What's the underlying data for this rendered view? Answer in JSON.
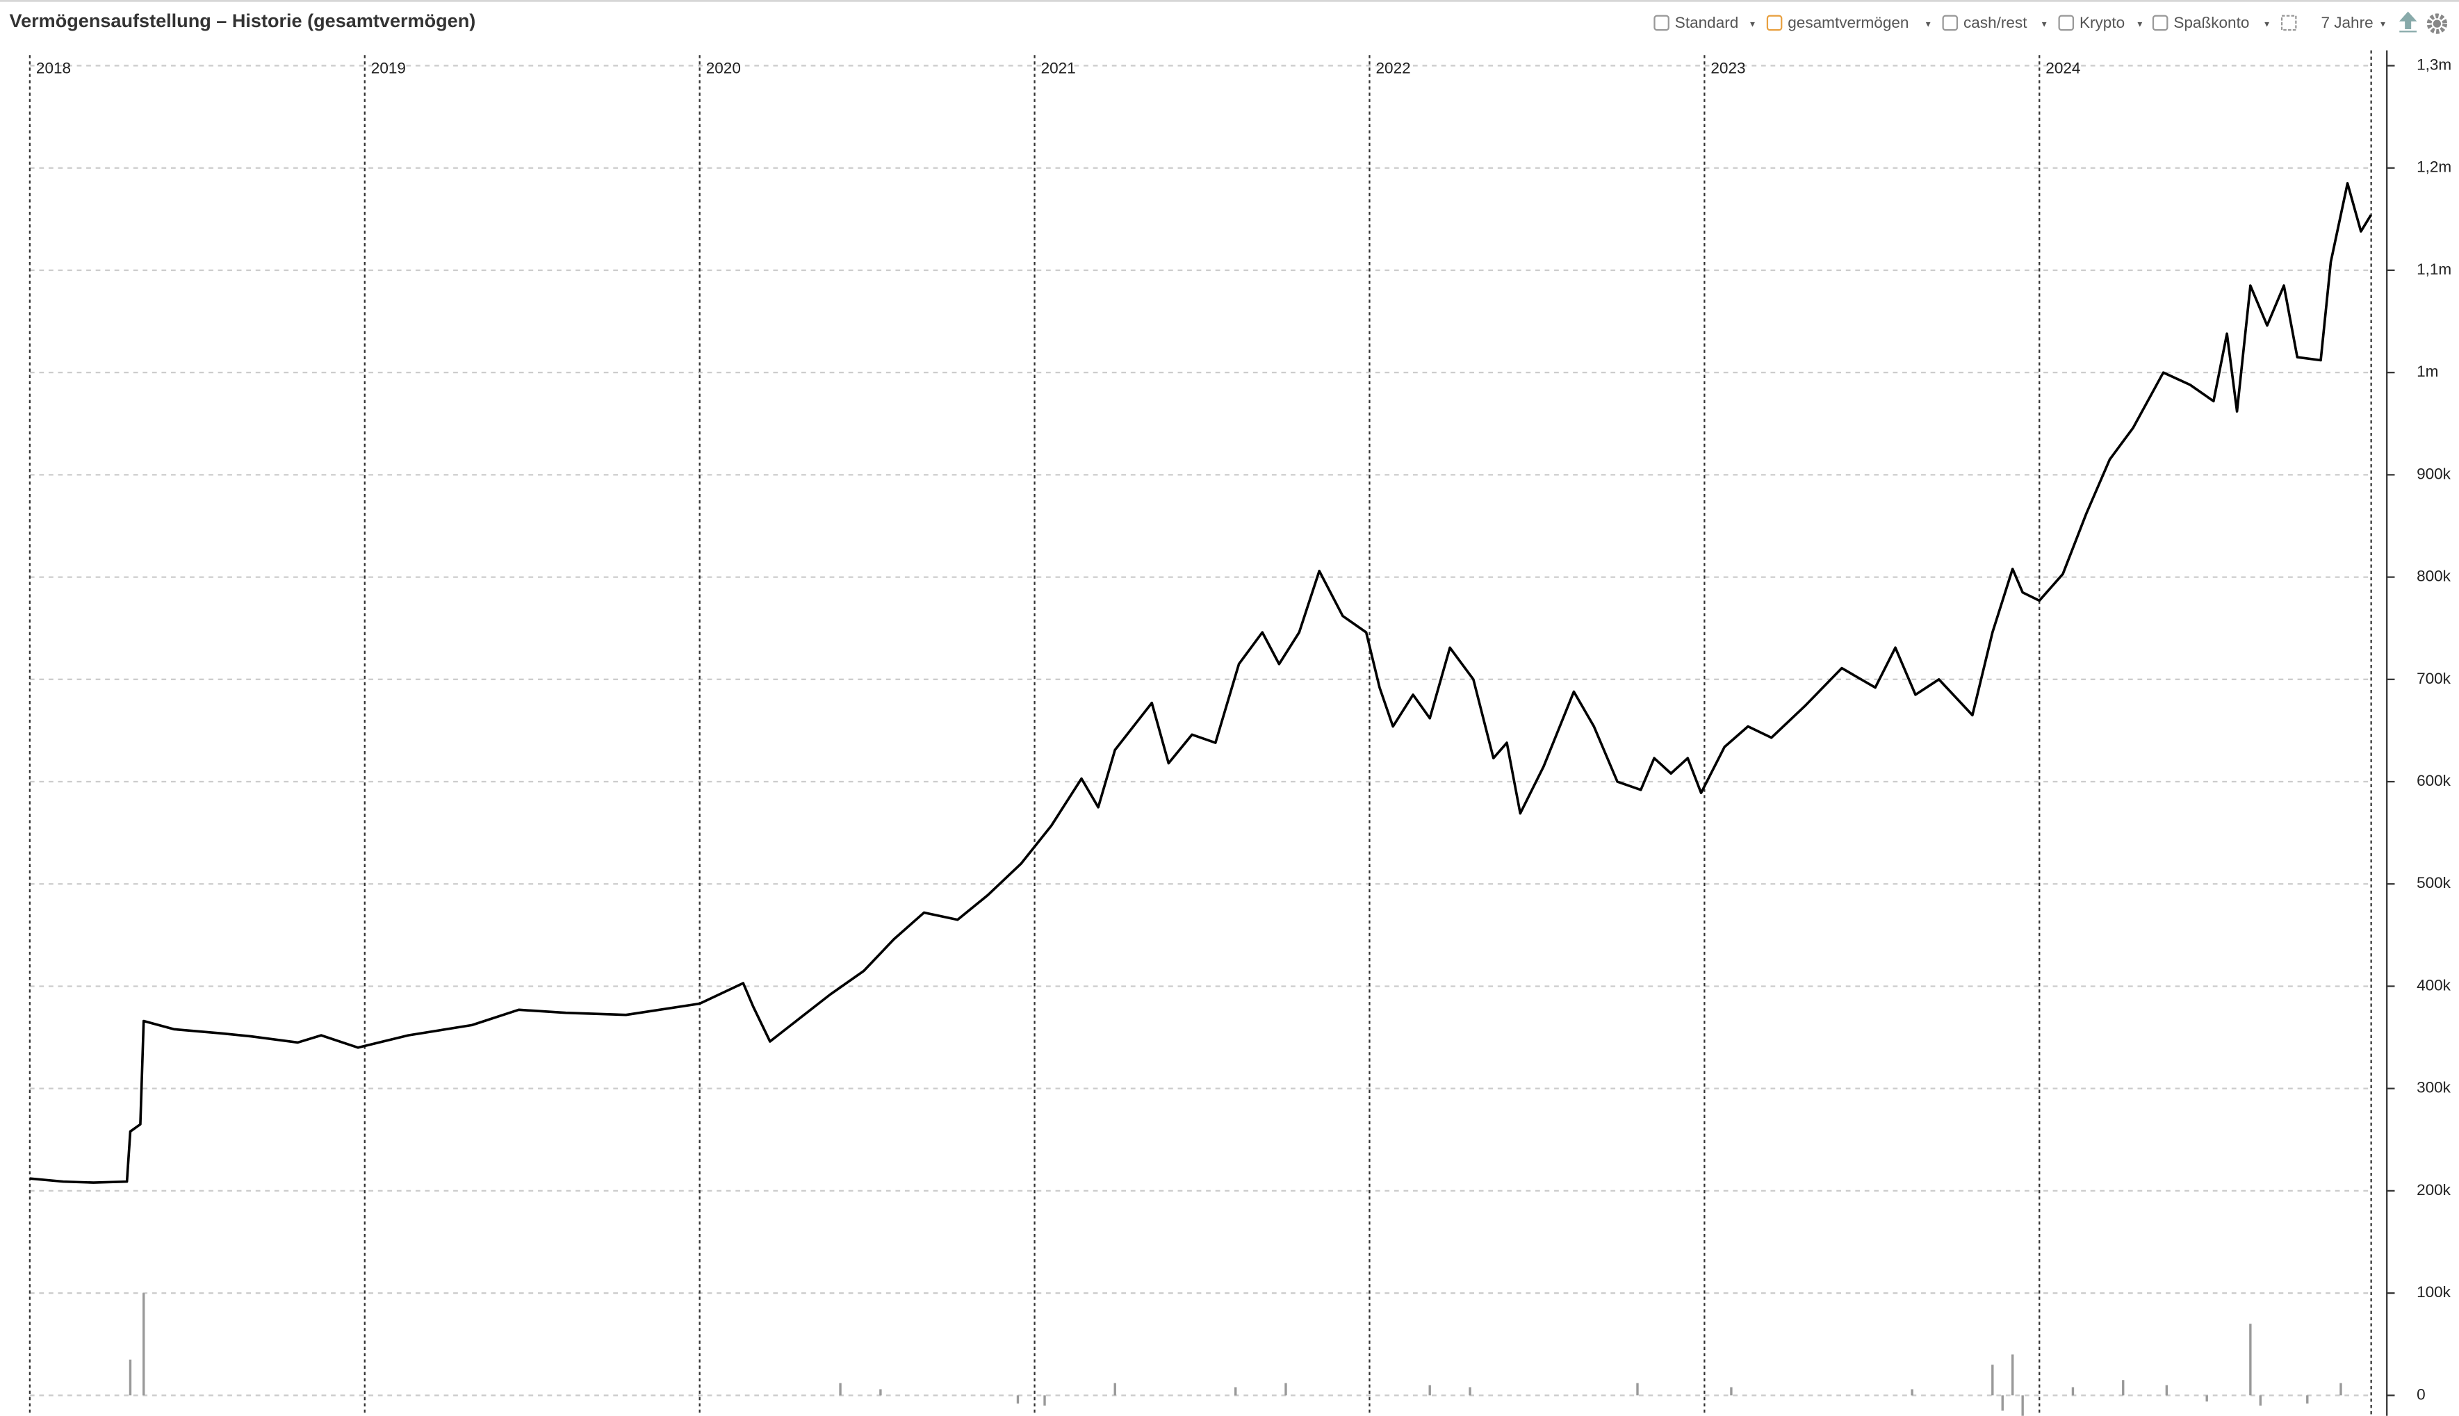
{
  "chart_data": {
    "type": "line",
    "title": "Vermögensaufstellung – Historie (gesamtvermögen)",
    "toolbar": {
      "items": [
        "Standard",
        "gesamtvermögen",
        "cash/rest",
        "Krypto",
        "Spaßkonto"
      ],
      "range": "7 Jahre"
    },
    "xlim": [
      2017.911,
      2025.0
    ],
    "xticks": [
      2018,
      2019,
      2020,
      2021,
      2022,
      2023,
      2024
    ],
    "ylim": [
      -20000,
      1315000
    ],
    "yticks": [
      0,
      {
        "value": 100000,
        "label": "100k"
      },
      {
        "value": 200000,
        "label": "200k"
      },
      {
        "value": 300000,
        "label": "300k"
      },
      {
        "value": 400000,
        "label": "400k"
      },
      {
        "value": 500000,
        "label": "500k"
      },
      {
        "value": 600000,
        "label": "600k"
      },
      {
        "value": 700000,
        "label": "700k"
      },
      {
        "value": 800000,
        "label": "800k"
      },
      {
        "value": 900000,
        "label": "900k"
      },
      {
        "value": 1000000,
        "label": "1m"
      },
      {
        "value": 1100000,
        "label": "1,1m"
      },
      {
        "value": 1200000,
        "label": "1,2m"
      },
      {
        "value": 1300000,
        "label": "1,3m"
      }
    ],
    "grid": true,
    "x": [
      2018.0,
      2018.1,
      2018.19,
      2018.29,
      2018.3,
      2018.33,
      2018.34,
      2018.43,
      2018.57,
      2018.66,
      2018.8,
      2018.87,
      2018.98,
      2019.13,
      2019.32,
      2019.46,
      2019.6,
      2019.78,
      2020.0,
      2020.13,
      2020.16,
      2020.21,
      2020.3,
      2020.39,
      2020.49,
      2020.58,
      2020.67,
      2020.77,
      2020.86,
      2020.96,
      2021.05,
      2021.14,
      2021.19,
      2021.24,
      2021.35,
      2021.4,
      2021.47,
      2021.54,
      2021.61,
      2021.68,
      2021.73,
      2021.79,
      2021.85,
      2021.92,
      2021.99,
      2022.03,
      2022.07,
      2022.13,
      2022.18,
      2022.24,
      2022.31,
      2022.37,
      2022.41,
      2022.45,
      2022.52,
      2022.61,
      2022.67,
      2022.74,
      2022.81,
      2022.85,
      2022.9,
      2022.95,
      2022.99,
      2023.06,
      2023.13,
      2023.2,
      2023.3,
      2023.41,
      2023.51,
      2023.57,
      2023.63,
      2023.7,
      2023.8,
      2023.86,
      2023.92,
      2023.95,
      2024.0,
      2024.07,
      2024.14,
      2024.21,
      2024.28,
      2024.37,
      2024.45,
      2024.52,
      2024.56,
      2024.59,
      2024.63,
      2024.68,
      2024.73,
      2024.77,
      2024.84,
      2024.87,
      2024.92,
      2024.96,
      2024.99
    ],
    "series": [
      {
        "color": "#000000",
        "values": [
          212000,
          209000,
          208000,
          209000,
          258000,
          265000,
          366000,
          358000,
          354000,
          351000,
          345000,
          352000,
          340000,
          352000,
          362000,
          377000,
          374000,
          372000,
          383000,
          403000,
          380000,
          346000,
          369000,
          392000,
          415000,
          446000,
          472000,
          465000,
          489000,
          520000,
          557000,
          603000,
          575000,
          631000,
          677000,
          618000,
          646000,
          638000,
          715000,
          746000,
          715000,
          746000,
          806000,
          762000,
          746000,
          692000,
          654000,
          685000,
          662000,
          731000,
          700000,
          623000,
          638000,
          569000,
          615000,
          688000,
          654000,
          600000,
          592000,
          623000,
          608000,
          623000,
          589000,
          634000,
          654000,
          643000,
          674000,
          711000,
          692000,
          731000,
          685000,
          700000,
          665000,
          746000,
          808000,
          785000,
          777000,
          803000,
          862000,
          915000,
          946000,
          1000000,
          988000,
          972000,
          1038000,
          962000,
          1085000,
          1046000,
          1085000,
          1015000,
          1012000,
          1108000,
          1185000,
          1138000,
          1154000
        ]
      }
    ],
    "bars": {
      "color": "#999999",
      "x": [
        2018.3,
        2018.34,
        2020.42,
        2020.54,
        2020.95,
        2021.03,
        2021.24,
        2021.6,
        2021.75,
        2022.18,
        2022.3,
        2022.8,
        2023.08,
        2023.62,
        2023.86,
        2023.89,
        2023.92,
        2023.95,
        2024.1,
        2024.25,
        2024.38,
        2024.5,
        2024.63,
        2024.66,
        2024.8,
        2024.9
      ],
      "values": [
        35000,
        100000,
        12000,
        6000,
        -8000,
        -10000,
        12000,
        8000,
        12000,
        10000,
        8000,
        12000,
        8000,
        6000,
        30000,
        -15000,
        40000,
        -20000,
        8000,
        15000,
        10000,
        -6000,
        70000,
        -10000,
        -8000,
        12000
      ]
    }
  }
}
